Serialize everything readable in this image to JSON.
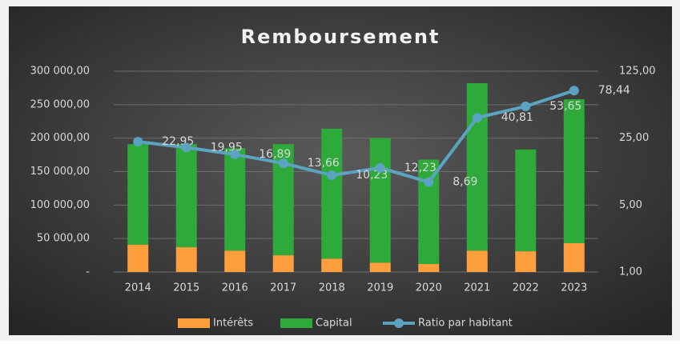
{
  "chart_data": {
    "type": "bar-line",
    "title": "Remboursement",
    "categories": [
      "2014",
      "2015",
      "2016",
      "2017",
      "2018",
      "2019",
      "2020",
      "2021",
      "2022",
      "2023"
    ],
    "series": [
      {
        "name": "Intérêts",
        "type": "bar",
        "color": "#ff9e3d",
        "values": [
          41000,
          37000,
          32000,
          25000,
          20000,
          14000,
          12000,
          32000,
          31000,
          43000
        ]
      },
      {
        "name": "Capital",
        "type": "bar",
        "color": "#2eaa3a",
        "values": [
          150000,
          154000,
          153000,
          166000,
          194000,
          186000,
          156000,
          250000,
          152000,
          215000
        ]
      },
      {
        "name": "Ratio par habitant",
        "type": "line",
        "axis": "y2",
        "color": "#5ba3c0",
        "values": [
          22.95,
          19.95,
          16.89,
          13.66,
          10.23,
          12.23,
          8.69,
          40.81,
          53.65,
          78.44
        ],
        "value_labels": [
          "22,95",
          "19,95",
          "16,89",
          "13,66",
          "10,23",
          "12,23",
          "8,69",
          "40,81",
          "53,65",
          "78,44"
        ]
      }
    ],
    "stacked": true,
    "ylim": [
      0,
      300000
    ],
    "yticks": [
      {
        "value": 0,
        "label": "-"
      },
      {
        "value": 50000,
        "label": "50 000,00"
      },
      {
        "value": 100000,
        "label": "100 000,00"
      },
      {
        "value": 150000,
        "label": "150 000,00"
      },
      {
        "value": 200000,
        "label": "200 000,00"
      },
      {
        "value": 250000,
        "label": "250 000,00"
      },
      {
        "value": 300000,
        "label": "300 000,00"
      }
    ],
    "y2lim": [
      1,
      125
    ],
    "y2scale": "log",
    "y2ticks": [
      {
        "value": 1,
        "label": "1,00"
      },
      {
        "value": 5,
        "label": "5,00"
      },
      {
        "value": 25,
        "label": "25,00"
      },
      {
        "value": 125,
        "label": "125,00"
      }
    ],
    "grid": true,
    "legend": "bottom"
  }
}
